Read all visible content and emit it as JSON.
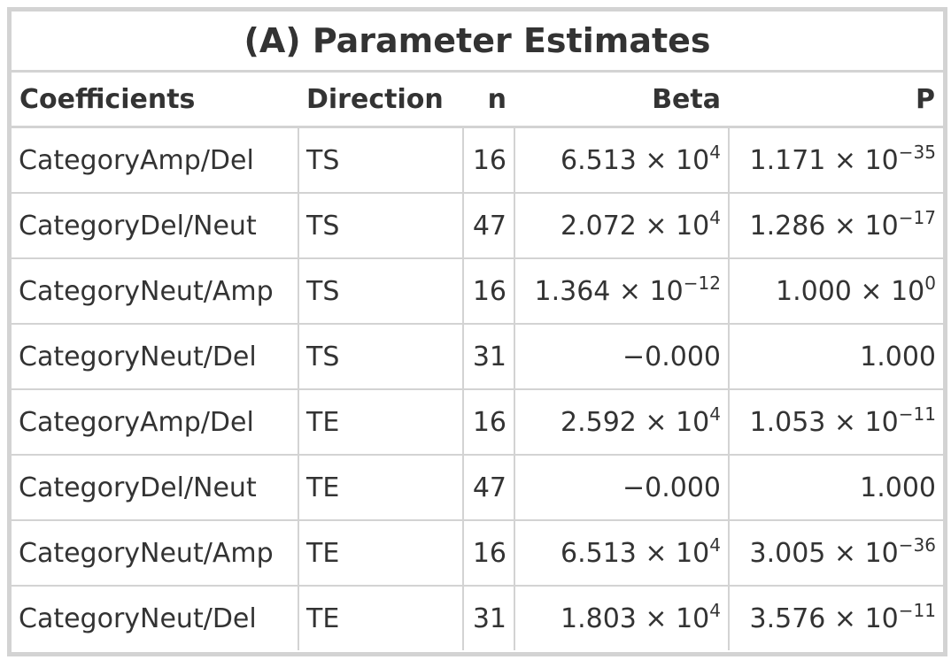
{
  "title": "(A) Parameter Estimates",
  "columns": [
    "Coefficients",
    "Direction",
    "n",
    "Beta",
    "P"
  ],
  "rows": [
    {
      "coefficient": "CategoryAmp/Del",
      "direction": "TS",
      "n": "16",
      "beta": {
        "mantissa": "6.513",
        "exponent": "4"
      },
      "p": {
        "mantissa": "1.171",
        "exponent": "−35"
      }
    },
    {
      "coefficient": "CategoryDel/Neut",
      "direction": "TS",
      "n": "47",
      "beta": {
        "mantissa": "2.072",
        "exponent": "4"
      },
      "p": {
        "mantissa": "1.286",
        "exponent": "−17"
      }
    },
    {
      "coefficient": "CategoryNeut/Amp",
      "direction": "TS",
      "n": "16",
      "beta": {
        "mantissa": "1.364",
        "exponent": "−12"
      },
      "p": {
        "mantissa": "1.000",
        "exponent": "0"
      }
    },
    {
      "coefficient": "CategoryNeut/Del",
      "direction": "TS",
      "n": "31",
      "beta": {
        "plain": "−0.000"
      },
      "p": {
        "plain": "1.000"
      }
    },
    {
      "coefficient": "CategoryAmp/Del",
      "direction": "TE",
      "n": "16",
      "beta": {
        "mantissa": "2.592",
        "exponent": "4"
      },
      "p": {
        "mantissa": "1.053",
        "exponent": "−11"
      }
    },
    {
      "coefficient": "CategoryDel/Neut",
      "direction": "TE",
      "n": "47",
      "beta": {
        "plain": "−0.000"
      },
      "p": {
        "plain": "1.000"
      }
    },
    {
      "coefficient": "CategoryNeut/Amp",
      "direction": "TE",
      "n": "16",
      "beta": {
        "mantissa": "6.513",
        "exponent": "4"
      },
      "p": {
        "mantissa": "3.005",
        "exponent": "−36"
      }
    },
    {
      "coefficient": "CategoryNeut/Del",
      "direction": "TE",
      "n": "31",
      "beta": {
        "mantissa": "1.803",
        "exponent": "4"
      },
      "p": {
        "mantissa": "3.576",
        "exponent": "−11"
      }
    }
  ]
}
